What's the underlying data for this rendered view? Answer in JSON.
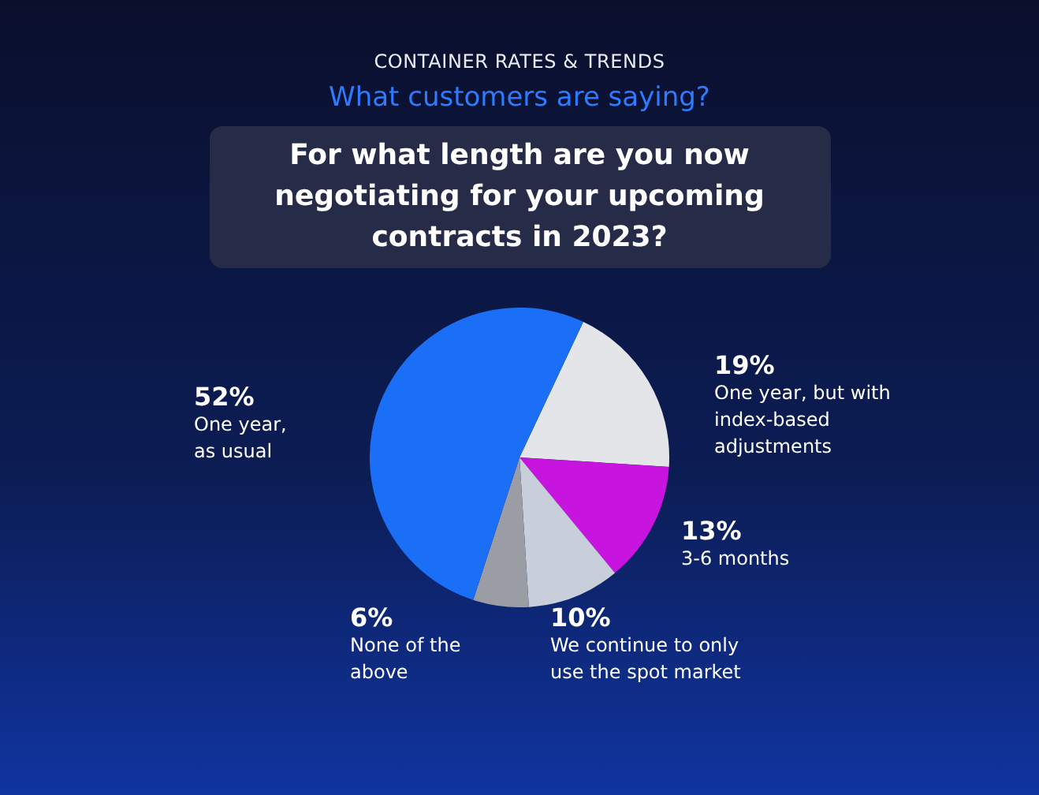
{
  "chart_data": {
    "type": "pie",
    "title": "For what length are you now negotiating for your upcoming contracts in 2023?",
    "subtitle": "What customers are saying?",
    "annotations": [
      "CONTAINER RATES & TRENDS"
    ],
    "categories": [
      "One year, but with index-based adjustments",
      "3-6 months",
      "We continue to only use the spot market",
      "None of the above",
      "One year, as usual"
    ],
    "values": [
      19,
      13,
      10,
      6,
      52
    ],
    "value_labels": [
      "19%",
      "13%",
      "10%",
      "6%",
      "52%"
    ],
    "colors": [
      "#e4e5e9",
      "#c814df",
      "#c8cfdb",
      "#9b9da5",
      "#1b6ef6"
    ]
  }
}
